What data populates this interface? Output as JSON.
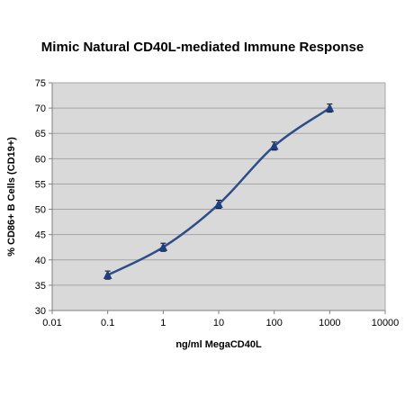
{
  "chart_data": {
    "type": "scatter",
    "title": "Mimic Natural CD40L-mediated Immune Response",
    "xlabel": "ng/ml MegaCD40L",
    "ylabel": "% CD86+ B Cells (CD19+)",
    "x_scale": "log",
    "xlim": [
      0.01,
      10000
    ],
    "ylim": [
      30,
      75
    ],
    "x_ticks": [
      "0.01",
      "0.1",
      "1",
      "10",
      "100",
      "1000",
      "10000"
    ],
    "y_ticks": [
      "30",
      "35",
      "40",
      "45",
      "50",
      "55",
      "60",
      "65",
      "70",
      "75"
    ],
    "grid": true,
    "series": [
      {
        "x": [
          0.1,
          1,
          10,
          100,
          1000
        ],
        "y": [
          37,
          42.5,
          51,
          62.5,
          70
        ],
        "error": [
          0.8,
          0.8,
          0.8,
          0.8,
          0.8
        ]
      }
    ],
    "colors": {
      "plot_background": "#d9d9d9",
      "line": "#2e4d8a",
      "marker": "#1f3f80",
      "grid": "#a6a6a6"
    }
  }
}
